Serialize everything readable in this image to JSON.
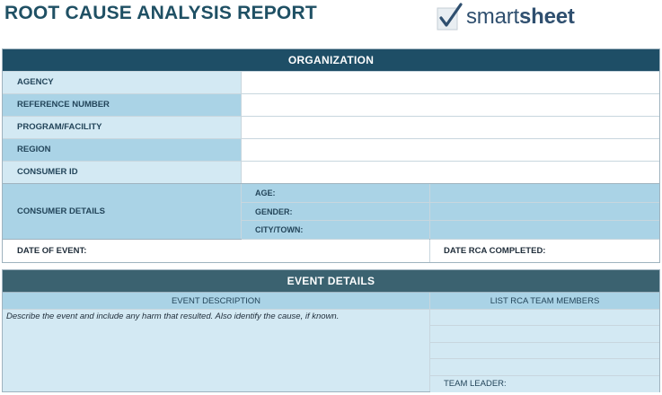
{
  "title": "ROOT CAUSE ANALYSIS REPORT",
  "logo": {
    "word_light": "smart",
    "word_bold": "sheet"
  },
  "organization": {
    "header": "ORGANIZATION",
    "rows": [
      {
        "label": "AGENCY",
        "value": ""
      },
      {
        "label": "REFERENCE NUMBER",
        "value": ""
      },
      {
        "label": "PROGRAM/FACILITY",
        "value": ""
      },
      {
        "label": "REGION",
        "value": ""
      },
      {
        "label": "CONSUMER ID",
        "value": ""
      }
    ],
    "consumer_details": {
      "label": "CONSUMER DETAILS",
      "fields": [
        {
          "label": "AGE:",
          "value": ""
        },
        {
          "label": "GENDER:",
          "value": ""
        },
        {
          "label": "CITY/TOWN:",
          "value": ""
        }
      ]
    },
    "date_of_event": "DATE OF EVENT:",
    "date_rca_completed": "DATE RCA COMPLETED:"
  },
  "event_details": {
    "header": "EVENT DETAILS",
    "description_header": "EVENT DESCRIPTION",
    "team_header": "LIST RCA TEAM MEMBERS",
    "description_text": "Describe the event and include any harm that resulted. Also identify the cause, if known.",
    "team_leader": "TEAM LEADER:"
  }
}
